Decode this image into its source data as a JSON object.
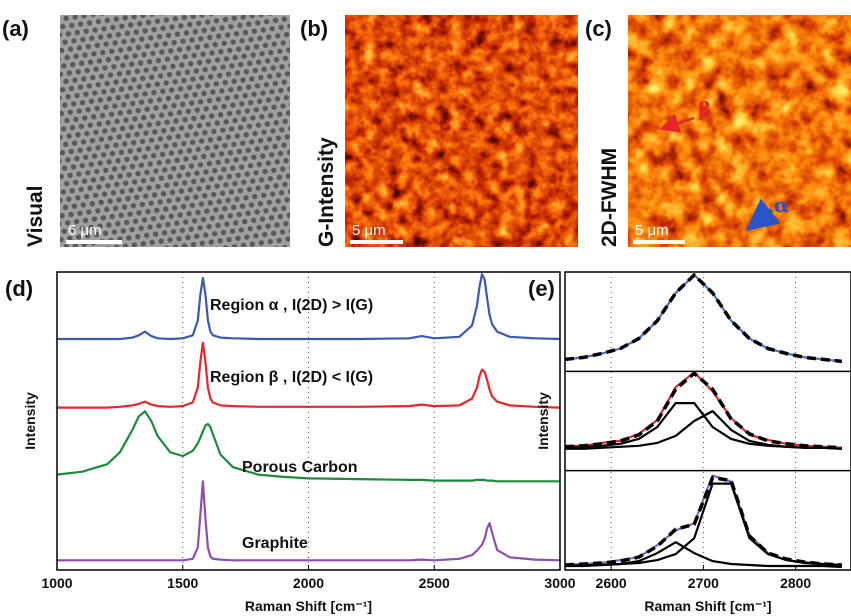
{
  "panels": [
    {
      "label": "(a)",
      "side_label": "Visual",
      "scale_bar": "6 μm"
    },
    {
      "label": "(b)",
      "side_label": "G-Intensity",
      "scale_bar": "5 μm"
    },
    {
      "label": "(c)",
      "side_label": "2D-FWHM",
      "scale_bar": "5 μm",
      "markers": [
        "β",
        "α"
      ]
    }
  ],
  "chart_data": [
    {
      "type": "line",
      "label": "(d)",
      "xlabel": "Raman Shift [cm⁻¹]",
      "ylabel": "Intensity",
      "xlim": [
        1000,
        3000
      ],
      "xticks": [
        1000,
        1500,
        2000,
        2500,
        3000
      ],
      "ylim": [
        0,
        4
      ],
      "grid": true,
      "x": [
        1000,
        1100,
        1200,
        1250,
        1300,
        1325,
        1350,
        1375,
        1400,
        1450,
        1500,
        1540,
        1560,
        1570,
        1580,
        1590,
        1600,
        1610,
        1620,
        1650,
        1700,
        1800,
        1900,
        2000,
        2200,
        2400,
        2450,
        2500,
        2600,
        2650,
        2670,
        2680,
        2690,
        2700,
        2710,
        2720,
        2730,
        2750,
        2800,
        2900,
        3000
      ],
      "series": [
        {
          "name": "Region α , I(2D) > I(G)",
          "color": "#3a5ab0",
          "values": [
            3.1,
            3.1,
            3.1,
            3.1,
            3.12,
            3.15,
            3.2,
            3.14,
            3.11,
            3.1,
            3.11,
            3.15,
            3.35,
            3.7,
            3.92,
            3.7,
            3.35,
            3.2,
            3.15,
            3.12,
            3.11,
            3.1,
            3.1,
            3.1,
            3.1,
            3.11,
            3.14,
            3.11,
            3.13,
            3.28,
            3.55,
            3.8,
            3.97,
            3.9,
            3.65,
            3.42,
            3.3,
            3.2,
            3.13,
            3.11,
            3.1
          ]
        },
        {
          "name": "Region β , I(2D) < I(G)",
          "color": "#e8262a",
          "values": [
            2.18,
            2.18,
            2.18,
            2.19,
            2.21,
            2.23,
            2.26,
            2.22,
            2.2,
            2.19,
            2.2,
            2.25,
            2.45,
            2.8,
            3.05,
            2.8,
            2.45,
            2.3,
            2.25,
            2.21,
            2.2,
            2.19,
            2.19,
            2.19,
            2.19,
            2.2,
            2.22,
            2.2,
            2.21,
            2.3,
            2.45,
            2.6,
            2.69,
            2.66,
            2.55,
            2.42,
            2.33,
            2.26,
            2.21,
            2.19,
            2.18
          ]
        },
        {
          "name": "Porous Carbon",
          "color": "#1f8a3c",
          "values": [
            1.28,
            1.32,
            1.42,
            1.58,
            1.88,
            2.06,
            2.13,
            2.0,
            1.8,
            1.58,
            1.53,
            1.6,
            1.7,
            1.78,
            1.86,
            1.94,
            1.96,
            1.92,
            1.82,
            1.55,
            1.38,
            1.28,
            1.25,
            1.23,
            1.22,
            1.21,
            1.21,
            1.2,
            1.2,
            1.2,
            1.21,
            1.21,
            1.21,
            1.21,
            1.2,
            1.2,
            1.2,
            1.19,
            1.19,
            1.19,
            1.19
          ]
        },
        {
          "name": "Graphite",
          "color": "#8a4fb0",
          "values": [
            0.13,
            0.13,
            0.13,
            0.13,
            0.13,
            0.13,
            0.13,
            0.13,
            0.13,
            0.13,
            0.13,
            0.15,
            0.3,
            0.75,
            1.19,
            0.7,
            0.3,
            0.18,
            0.15,
            0.14,
            0.13,
            0.13,
            0.13,
            0.13,
            0.13,
            0.13,
            0.14,
            0.13,
            0.15,
            0.2,
            0.26,
            0.3,
            0.34,
            0.42,
            0.56,
            0.63,
            0.5,
            0.27,
            0.17,
            0.14,
            0.13
          ]
        }
      ]
    },
    {
      "type": "line",
      "label": "(e)",
      "xlabel": "Raman Shift [cm⁻¹]",
      "ylabel": "Intensity",
      "xlim": [
        2550,
        2860
      ],
      "xticks": [
        2600,
        2700,
        2800
      ],
      "ylim": [
        0,
        3
      ],
      "grid": true,
      "x": [
        2550,
        2570,
        2590,
        2610,
        2630,
        2650,
        2670,
        2690,
        2710,
        2730,
        2750,
        2770,
        2790,
        2810,
        2830,
        2850
      ],
      "series": [
        {
          "color": "#4a6fc0",
          "style": "solid",
          "values": [
            2.12,
            2.14,
            2.18,
            2.23,
            2.33,
            2.51,
            2.79,
            2.97,
            2.79,
            2.51,
            2.33,
            2.23,
            2.18,
            2.14,
            2.12,
            2.1
          ]
        },
        {
          "color": "#000000",
          "style": "dashed",
          "values": [
            2.12,
            2.14,
            2.18,
            2.23,
            2.33,
            2.51,
            2.79,
            2.97,
            2.79,
            2.51,
            2.33,
            2.23,
            2.18,
            2.14,
            2.12,
            2.1
          ]
        },
        {
          "color": "#e8262a",
          "style": "solid",
          "values": [
            1.25,
            1.25,
            1.28,
            1.3,
            1.37,
            1.51,
            1.84,
            1.99,
            1.8,
            1.53,
            1.36,
            1.31,
            1.27,
            1.25,
            1.24,
            1.23
          ]
        },
        {
          "color": "#000000",
          "style": "dashed",
          "values": [
            1.24,
            1.25,
            1.27,
            1.3,
            1.36,
            1.5,
            1.82,
            1.98,
            1.82,
            1.52,
            1.37,
            1.3,
            1.27,
            1.25,
            1.24,
            1.23
          ]
        },
        {
          "color": "#000000",
          "style": "solid",
          "values": [
            1.23,
            1.24,
            1.25,
            1.27,
            1.32,
            1.44,
            1.68,
            1.68,
            1.44,
            1.32,
            1.27,
            1.25,
            1.24,
            1.23,
            1.23,
            1.22
          ]
        },
        {
          "color": "#000000",
          "style": "solid",
          "values": [
            1.22,
            1.22,
            1.23,
            1.24,
            1.25,
            1.28,
            1.35,
            1.5,
            1.6,
            1.41,
            1.3,
            1.26,
            1.24,
            1.23,
            1.23,
            1.22
          ]
        },
        {
          "color": "#8a62c0",
          "style": "solid",
          "values": [
            0.05,
            0.06,
            0.07,
            0.1,
            0.13,
            0.25,
            0.4,
            0.47,
            0.95,
            0.89,
            0.35,
            0.17,
            0.1,
            0.08,
            0.06,
            0.05
          ]
        },
        {
          "color": "#000000",
          "style": "dashed",
          "values": [
            0.05,
            0.06,
            0.07,
            0.09,
            0.13,
            0.24,
            0.41,
            0.46,
            0.93,
            0.9,
            0.34,
            0.17,
            0.11,
            0.08,
            0.06,
            0.05
          ]
        },
        {
          "color": "#000000",
          "style": "solid",
          "values": [
            0.04,
            0.04,
            0.05,
            0.06,
            0.09,
            0.17,
            0.28,
            0.17,
            0.09,
            0.06,
            0.05,
            0.04,
            0.04,
            0.04,
            0.04,
            0.03
          ]
        },
        {
          "color": "#000000",
          "style": "solid",
          "values": [
            0.04,
            0.05,
            0.05,
            0.06,
            0.07,
            0.1,
            0.16,
            0.32,
            0.87,
            0.87,
            0.32,
            0.16,
            0.1,
            0.07,
            0.06,
            0.05
          ]
        }
      ]
    }
  ]
}
